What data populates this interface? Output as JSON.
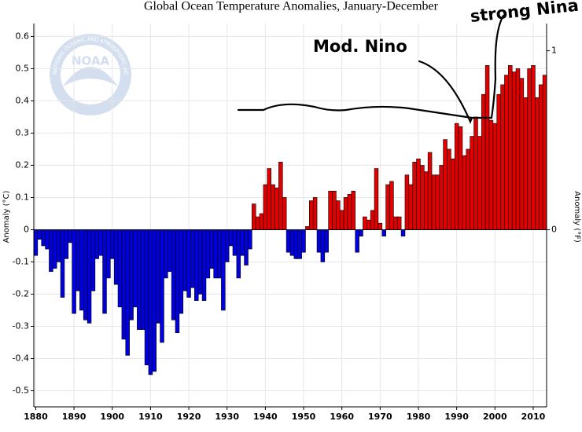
{
  "chart_data": {
    "type": "bar",
    "title": "Global Ocean Temperature Anomalies, January-December",
    "y_label": "Anomaly (°C)",
    "y2_label": "Anomaly (°F)",
    "logo": {
      "name": "NOAA",
      "ring_top": "NATIONAL OCEANIC AND ATMOSPHERIC ADMINISTRATION",
      "ring_bottom": "U.S. DEPARTMENT OF COMMERCE"
    },
    "annotations": [
      "Mod. Nino",
      "strong Nina"
    ],
    "x": [
      1880,
      1881,
      1882,
      1883,
      1884,
      1885,
      1886,
      1887,
      1888,
      1889,
      1890,
      1891,
      1892,
      1893,
      1894,
      1895,
      1896,
      1897,
      1898,
      1899,
      1900,
      1901,
      1902,
      1903,
      1904,
      1905,
      1906,
      1907,
      1908,
      1909,
      1910,
      1911,
      1912,
      1913,
      1914,
      1915,
      1916,
      1917,
      1918,
      1919,
      1920,
      1921,
      1922,
      1923,
      1924,
      1925,
      1926,
      1927,
      1928,
      1929,
      1930,
      1931,
      1932,
      1933,
      1934,
      1935,
      1936,
      1937,
      1938,
      1939,
      1940,
      1941,
      1942,
      1943,
      1944,
      1945,
      1946,
      1947,
      1948,
      1949,
      1950,
      1951,
      1952,
      1953,
      1954,
      1955,
      1956,
      1957,
      1958,
      1959,
      1960,
      1961,
      1962,
      1963,
      1964,
      1965,
      1966,
      1967,
      1968,
      1969,
      1970,
      1971,
      1972,
      1973,
      1974,
      1975,
      1976,
      1977,
      1978,
      1979,
      1980,
      1981,
      1982,
      1983,
      1984,
      1985,
      1986,
      1987,
      1988,
      1989,
      1990,
      1991,
      1992,
      1993,
      1994,
      1995,
      1996,
      1997,
      1998,
      1999,
      2000,
      2001,
      2002,
      2003,
      2004,
      2005,
      2006,
      2007,
      2008,
      2009,
      2010,
      2011,
      2012,
      2013
    ],
    "values": [
      -0.08,
      -0.03,
      -0.05,
      -0.06,
      -0.13,
      -0.12,
      -0.1,
      -0.21,
      -0.09,
      -0.04,
      -0.26,
      -0.19,
      -0.25,
      -0.28,
      -0.29,
      -0.19,
      -0.09,
      -0.08,
      -0.26,
      -0.15,
      -0.09,
      -0.17,
      -0.24,
      -0.34,
      -0.39,
      -0.28,
      -0.24,
      -0.31,
      -0.31,
      -0.42,
      -0.45,
      -0.44,
      -0.29,
      -0.35,
      -0.15,
      -0.13,
      -0.28,
      -0.32,
      -0.26,
      -0.19,
      -0.21,
      -0.18,
      -0.22,
      -0.2,
      -0.22,
      -0.15,
      -0.12,
      -0.15,
      -0.15,
      -0.25,
      -0.1,
      -0.05,
      -0.08,
      -0.15,
      -0.08,
      -0.11,
      -0.06,
      0.08,
      0.04,
      0.05,
      0.14,
      0.19,
      0.14,
      0.13,
      0.21,
      0.1,
      -0.07,
      -0.08,
      -0.09,
      -0.09,
      -0.07,
      0.01,
      0.09,
      0.1,
      -0.07,
      -0.1,
      -0.07,
      0.12,
      0.12,
      0.09,
      0.06,
      0.1,
      0.11,
      0.12,
      -0.07,
      -0.02,
      0.04,
      0.03,
      0.06,
      0.19,
      0.02,
      -0.02,
      0.14,
      0.15,
      0.04,
      0.04,
      -0.02,
      0.17,
      0.14,
      0.21,
      0.22,
      0.2,
      0.18,
      0.24,
      0.17,
      0.17,
      0.2,
      0.28,
      0.25,
      0.22,
      0.33,
      0.32,
      0.23,
      0.25,
      0.29,
      0.35,
      0.29,
      0.42,
      0.51,
      0.34,
      0.33,
      0.42,
      0.45,
      0.48,
      0.51,
      0.49,
      0.5,
      0.47,
      0.41,
      0.5,
      0.51,
      0.41,
      0.45,
      0.48
    ],
    "colors": {
      "positive": "#e00000",
      "negative": "#0000dd"
    },
    "xlim": [
      1879.5,
      2013.5
    ],
    "xticks": [
      1880,
      1890,
      1900,
      1910,
      1920,
      1930,
      1940,
      1950,
      1960,
      1970,
      1980,
      1990,
      2000,
      2010
    ],
    "ylim": [
      -0.55,
      0.64
    ],
    "yticks": [
      0.6,
      0.5,
      0.4,
      0.3,
      0.2,
      0.1,
      0,
      -0.1,
      -0.2,
      -0.3,
      -0.4,
      -0.5
    ],
    "y2lim": [
      -0.99,
      1.152
    ],
    "y2ticks": [
      1,
      0
    ],
    "grid": true
  }
}
